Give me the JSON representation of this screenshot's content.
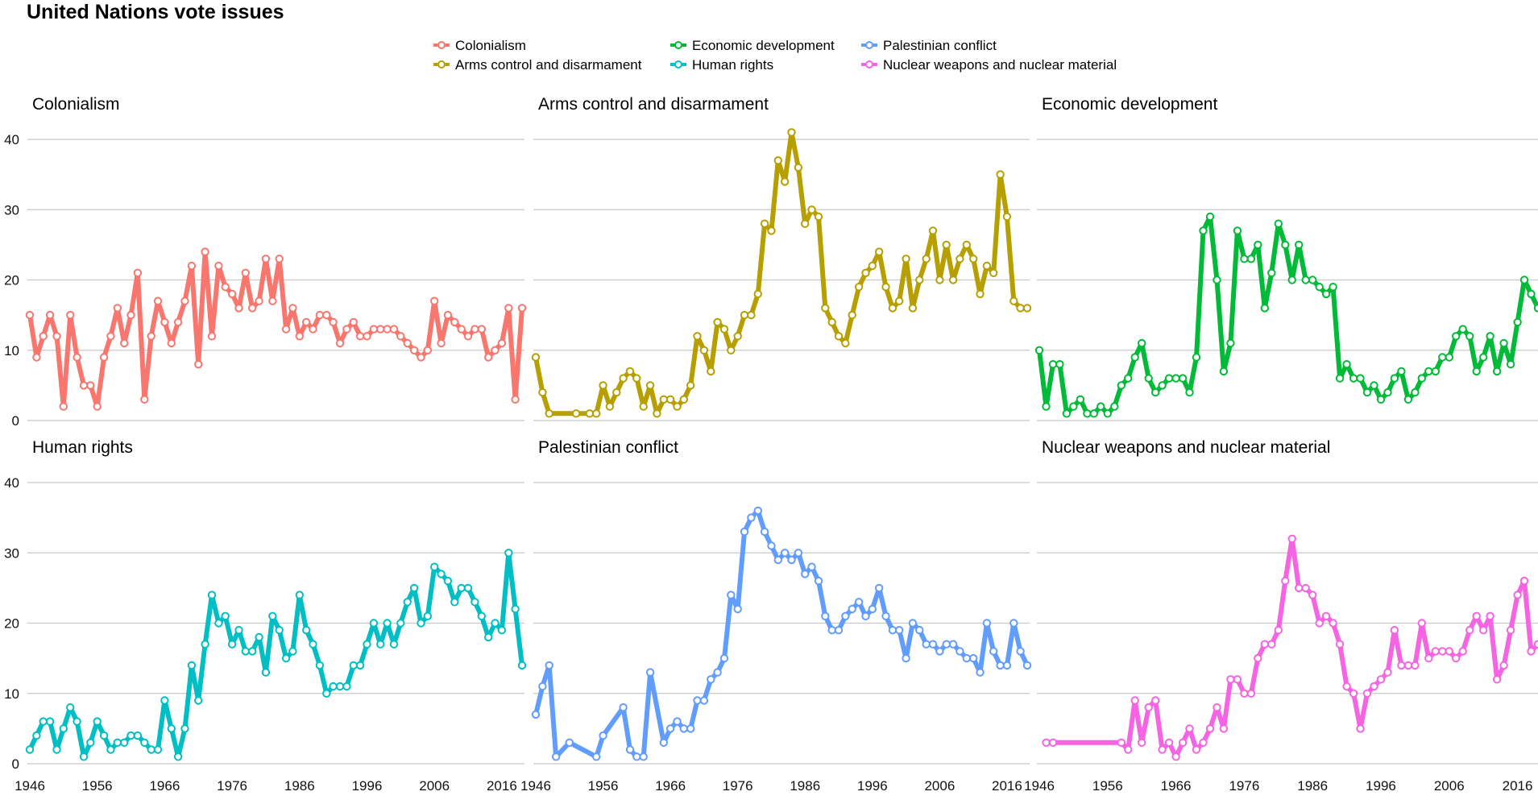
{
  "chart_data": {
    "type": "line",
    "title": "United Nations vote issues",
    "xlabel": "",
    "ylabel": "",
    "xlim": [
      1946,
      2019
    ],
    "ylim": [
      0,
      40
    ],
    "y_ticks": [
      0,
      10,
      20,
      30,
      40
    ],
    "x_tick_labels": [
      "1946",
      "1956",
      "1966",
      "1976",
      "1986",
      "1996",
      "2006",
      "2016"
    ],
    "legend_position": "top",
    "grid": true,
    "panels": [
      {
        "title": "Colonialism",
        "color": "#F8766D",
        "x": [
          1946,
          1947,
          1948,
          1949,
          1950,
          1951,
          1952,
          1953,
          1954,
          1955,
          1956,
          1957,
          1958,
          1959,
          1960,
          1961,
          1962,
          1963,
          1964,
          1965,
          1966,
          1967,
          1968,
          1969,
          1970,
          1971,
          1972,
          1973,
          1974,
          1975,
          1976,
          1977,
          1978,
          1979,
          1980,
          1981,
          1982,
          1983,
          1984,
          1985,
          1986,
          1987,
          1988,
          1989,
          1990,
          1991,
          1992,
          1993,
          1994,
          1995,
          1996,
          1997,
          1998,
          1999,
          2000,
          2001,
          2002,
          2003,
          2004,
          2005,
          2006,
          2007,
          2008,
          2009,
          2010,
          2011,
          2012,
          2013,
          2014,
          2015,
          2016,
          2017,
          2018,
          2019
        ],
        "y": [
          15,
          9,
          12,
          15,
          12,
          2,
          15,
          9,
          5,
          5,
          2,
          9,
          12,
          16,
          11,
          15,
          21,
          3,
          12,
          17,
          14,
          11,
          14,
          17,
          22,
          8,
          24,
          12,
          22,
          19,
          18,
          16,
          21,
          16,
          17,
          23,
          17,
          23,
          13,
          16,
          12,
          14,
          13,
          15,
          15,
          14,
          11,
          13,
          14,
          12,
          12,
          13,
          13,
          13,
          13,
          12,
          11,
          10,
          9,
          10,
          17,
          11,
          15,
          14,
          13,
          12,
          13,
          13,
          9,
          10,
          11,
          16,
          3,
          16
        ]
      },
      {
        "title": "Arms control and disarmament",
        "color": "#B79F00",
        "x": [
          1946,
          1947,
          1948,
          1952,
          1954,
          1955,
          1956,
          1957,
          1958,
          1959,
          1960,
          1961,
          1962,
          1963,
          1964,
          1965,
          1966,
          1967,
          1968,
          1969,
          1970,
          1971,
          1972,
          1973,
          1974,
          1975,
          1976,
          1977,
          1978,
          1979,
          1980,
          1981,
          1982,
          1983,
          1984,
          1985,
          1986,
          1987,
          1988,
          1989,
          1990,
          1991,
          1992,
          1993,
          1994,
          1995,
          1996,
          1997,
          1998,
          1999,
          2000,
          2001,
          2002,
          2003,
          2004,
          2005,
          2006,
          2007,
          2008,
          2009,
          2010,
          2011,
          2012,
          2013,
          2014,
          2015,
          2016,
          2017,
          2018,
          2019
        ],
        "y": [
          9,
          4,
          1,
          1,
          1,
          1,
          5,
          2,
          4,
          6,
          7,
          6,
          2,
          5,
          1,
          3,
          3,
          2,
          3,
          5,
          12,
          10,
          7,
          14,
          13,
          10,
          12,
          15,
          15,
          18,
          28,
          27,
          37,
          34,
          41,
          36,
          28,
          30,
          29,
          16,
          14,
          12,
          11,
          15,
          19,
          21,
          22,
          24,
          19,
          16,
          17,
          23,
          16,
          20,
          23,
          27,
          20,
          25,
          20,
          23,
          25,
          23,
          18,
          22,
          21,
          35,
          29,
          17,
          16,
          16
        ]
      },
      {
        "title": "Economic development",
        "color": "#00BA38",
        "x": [
          1946,
          1947,
          1948,
          1949,
          1950,
          1951,
          1952,
          1953,
          1954,
          1955,
          1956,
          1957,
          1958,
          1959,
          1960,
          1961,
          1962,
          1963,
          1964,
          1965,
          1966,
          1967,
          1968,
          1969,
          1970,
          1971,
          1972,
          1973,
          1974,
          1975,
          1976,
          1977,
          1978,
          1979,
          1980,
          1981,
          1982,
          1983,
          1984,
          1985,
          1986,
          1987,
          1988,
          1989,
          1990,
          1991,
          1992,
          1993,
          1994,
          1995,
          1996,
          1997,
          1998,
          1999,
          2000,
          2001,
          2002,
          2003,
          2004,
          2005,
          2006,
          2007,
          2008,
          2009,
          2010,
          2011,
          2012,
          2013,
          2014,
          2015,
          2016,
          2017,
          2018,
          2019
        ],
        "y": [
          10,
          2,
          8,
          8,
          1,
          2,
          3,
          1,
          1,
          2,
          1,
          2,
          5,
          6,
          9,
          11,
          6,
          4,
          5,
          6,
          6,
          6,
          4,
          9,
          27,
          29,
          20,
          7,
          11,
          27,
          23,
          23,
          25,
          16,
          21,
          28,
          25,
          20,
          25,
          20,
          20,
          19,
          18,
          19,
          6,
          8,
          6,
          6,
          4,
          5,
          3,
          4,
          6,
          7,
          3,
          4,
          6,
          7,
          7,
          9,
          9,
          12,
          13,
          12,
          7,
          9,
          12,
          7,
          11,
          8,
          14,
          20,
          18,
          16
        ]
      },
      {
        "title": "Human rights",
        "color": "#00BFC4",
        "x": [
          1946,
          1947,
          1948,
          1949,
          1950,
          1951,
          1952,
          1953,
          1954,
          1955,
          1956,
          1957,
          1958,
          1959,
          1960,
          1961,
          1962,
          1963,
          1964,
          1965,
          1966,
          1967,
          1968,
          1969,
          1970,
          1971,
          1972,
          1973,
          1974,
          1975,
          1976,
          1977,
          1978,
          1979,
          1980,
          1981,
          1982,
          1983,
          1984,
          1985,
          1986,
          1987,
          1988,
          1989,
          1990,
          1991,
          1992,
          1993,
          1994,
          1995,
          1996,
          1997,
          1998,
          1999,
          2000,
          2001,
          2002,
          2003,
          2004,
          2005,
          2006,
          2007,
          2008,
          2009,
          2010,
          2011,
          2012,
          2013,
          2014,
          2015,
          2016,
          2017,
          2018,
          2019
        ],
        "y": [
          2,
          4,
          6,
          6,
          2,
          5,
          8,
          6,
          1,
          3,
          6,
          4,
          2,
          3,
          3,
          4,
          4,
          3,
          2,
          2,
          9,
          5,
          1,
          5,
          14,
          9,
          17,
          24,
          20,
          21,
          17,
          19,
          16,
          16,
          18,
          13,
          21,
          19,
          15,
          16,
          24,
          19,
          17,
          14,
          10,
          11,
          11,
          11,
          14,
          14,
          17,
          20,
          17,
          20,
          17,
          20,
          23,
          25,
          20,
          21,
          28,
          27,
          26,
          23,
          25,
          25,
          23,
          21,
          18,
          20,
          19,
          30,
          22,
          14
        ]
      },
      {
        "title": "Palestinian conflict",
        "color": "#619CFF",
        "x": [
          1946,
          1947,
          1948,
          1949,
          1951,
          1955,
          1956,
          1959,
          1960,
          1961,
          1962,
          1963,
          1965,
          1966,
          1967,
          1968,
          1969,
          1970,
          1971,
          1972,
          1973,
          1974,
          1975,
          1976,
          1977,
          1978,
          1979,
          1980,
          1981,
          1982,
          1983,
          1984,
          1985,
          1986,
          1987,
          1988,
          1989,
          1990,
          1991,
          1992,
          1993,
          1994,
          1995,
          1996,
          1997,
          1998,
          1999,
          2000,
          2001,
          2002,
          2003,
          2004,
          2005,
          2006,
          2007,
          2008,
          2009,
          2010,
          2011,
          2012,
          2013,
          2014,
          2015,
          2016,
          2017,
          2018,
          2019
        ],
        "y": [
          7,
          11,
          14,
          1,
          3,
          1,
          4,
          8,
          2,
          1,
          1,
          13,
          3,
          5,
          6,
          5,
          5,
          9,
          9,
          12,
          13,
          15,
          24,
          22,
          33,
          35,
          36,
          33,
          31,
          29,
          30,
          29,
          30,
          27,
          28,
          26,
          21,
          19,
          19,
          21,
          22,
          23,
          21,
          22,
          25,
          21,
          19,
          19,
          15,
          20,
          19,
          17,
          17,
          16,
          17,
          17,
          16,
          15,
          15,
          13,
          20,
          16,
          14,
          14,
          20,
          16,
          14
        ]
      },
      {
        "title": "Nuclear weapons and nuclear material",
        "color": "#F564E3",
        "x": [
          1947,
          1948,
          1958,
          1959,
          1960,
          1961,
          1962,
          1963,
          1964,
          1965,
          1966,
          1967,
          1968,
          1969,
          1970,
          1971,
          1972,
          1973,
          1974,
          1975,
          1976,
          1977,
          1978,
          1979,
          1980,
          1981,
          1982,
          1983,
          1984,
          1985,
          1986,
          1987,
          1988,
          1989,
          1990,
          1991,
          1992,
          1993,
          1994,
          1995,
          1996,
          1997,
          1998,
          1999,
          2000,
          2001,
          2002,
          2003,
          2004,
          2005,
          2006,
          2007,
          2008,
          2009,
          2010,
          2011,
          2012,
          2013,
          2014,
          2015,
          2016,
          2017,
          2018,
          2019
        ],
        "y": [
          3,
          3,
          3,
          2,
          9,
          3,
          8,
          9,
          2,
          3,
          1,
          3,
          5,
          2,
          3,
          5,
          8,
          5,
          12,
          12,
          10,
          10,
          15,
          17,
          17,
          19,
          26,
          32,
          25,
          25,
          24,
          20,
          21,
          20,
          17,
          11,
          10,
          5,
          10,
          11,
          12,
          13,
          19,
          14,
          14,
          14,
          20,
          15,
          16,
          16,
          16,
          15,
          16,
          19,
          21,
          19,
          21,
          12,
          14,
          19,
          24,
          26,
          16,
          17
        ]
      }
    ]
  },
  "legend": {
    "items": [
      {
        "label": "Colonialism",
        "color": "#F8766D"
      },
      {
        "label": "Arms control and disarmament",
        "color": "#B79F00"
      },
      {
        "label": "Economic development",
        "color": "#00BA38"
      },
      {
        "label": "Human rights",
        "color": "#00BFC4"
      },
      {
        "label": "Palestinian conflict",
        "color": "#619CFF"
      },
      {
        "label": "Nuclear weapons and nuclear material",
        "color": "#F564E3"
      }
    ]
  }
}
